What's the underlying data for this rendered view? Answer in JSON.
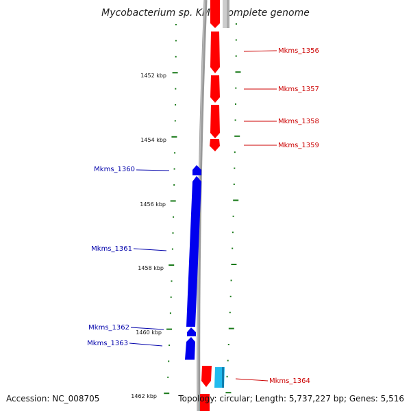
{
  "title": "Mycobacterium sp. KMS, complete genome",
  "accession": "Accession: NC_008705",
  "summary": "Topology: circular; Length: 5,737,227 bp; Genes: 5,516",
  "colors": {
    "forward_gene": "#ff0000",
    "reverse_gene": "#0000ee",
    "forward_label": "#cc0000",
    "reverse_label": "#0000aa",
    "other_feature": "#22bbee",
    "backbone": "#888888",
    "ticks": "#1a7a1a"
  },
  "scale": {
    "unit": "kbp",
    "labels": [
      "1452 kbp",
      "1454 kbp",
      "1456 kbp",
      "1458 kbp",
      "1460 kbp",
      "1462 kbp"
    ]
  },
  "forward_genes": [
    {
      "name": "Mkms_1356"
    },
    {
      "name": "Mkms_1357"
    },
    {
      "name": "Mkms_1358"
    },
    {
      "name": "Mkms_1359"
    },
    {
      "name": "Mkms_1364"
    }
  ],
  "reverse_genes": [
    {
      "name": "Mkms_1360"
    },
    {
      "name": "Mkms_1361"
    },
    {
      "name": "Mkms_1362"
    },
    {
      "name": "Mkms_1363"
    }
  ]
}
